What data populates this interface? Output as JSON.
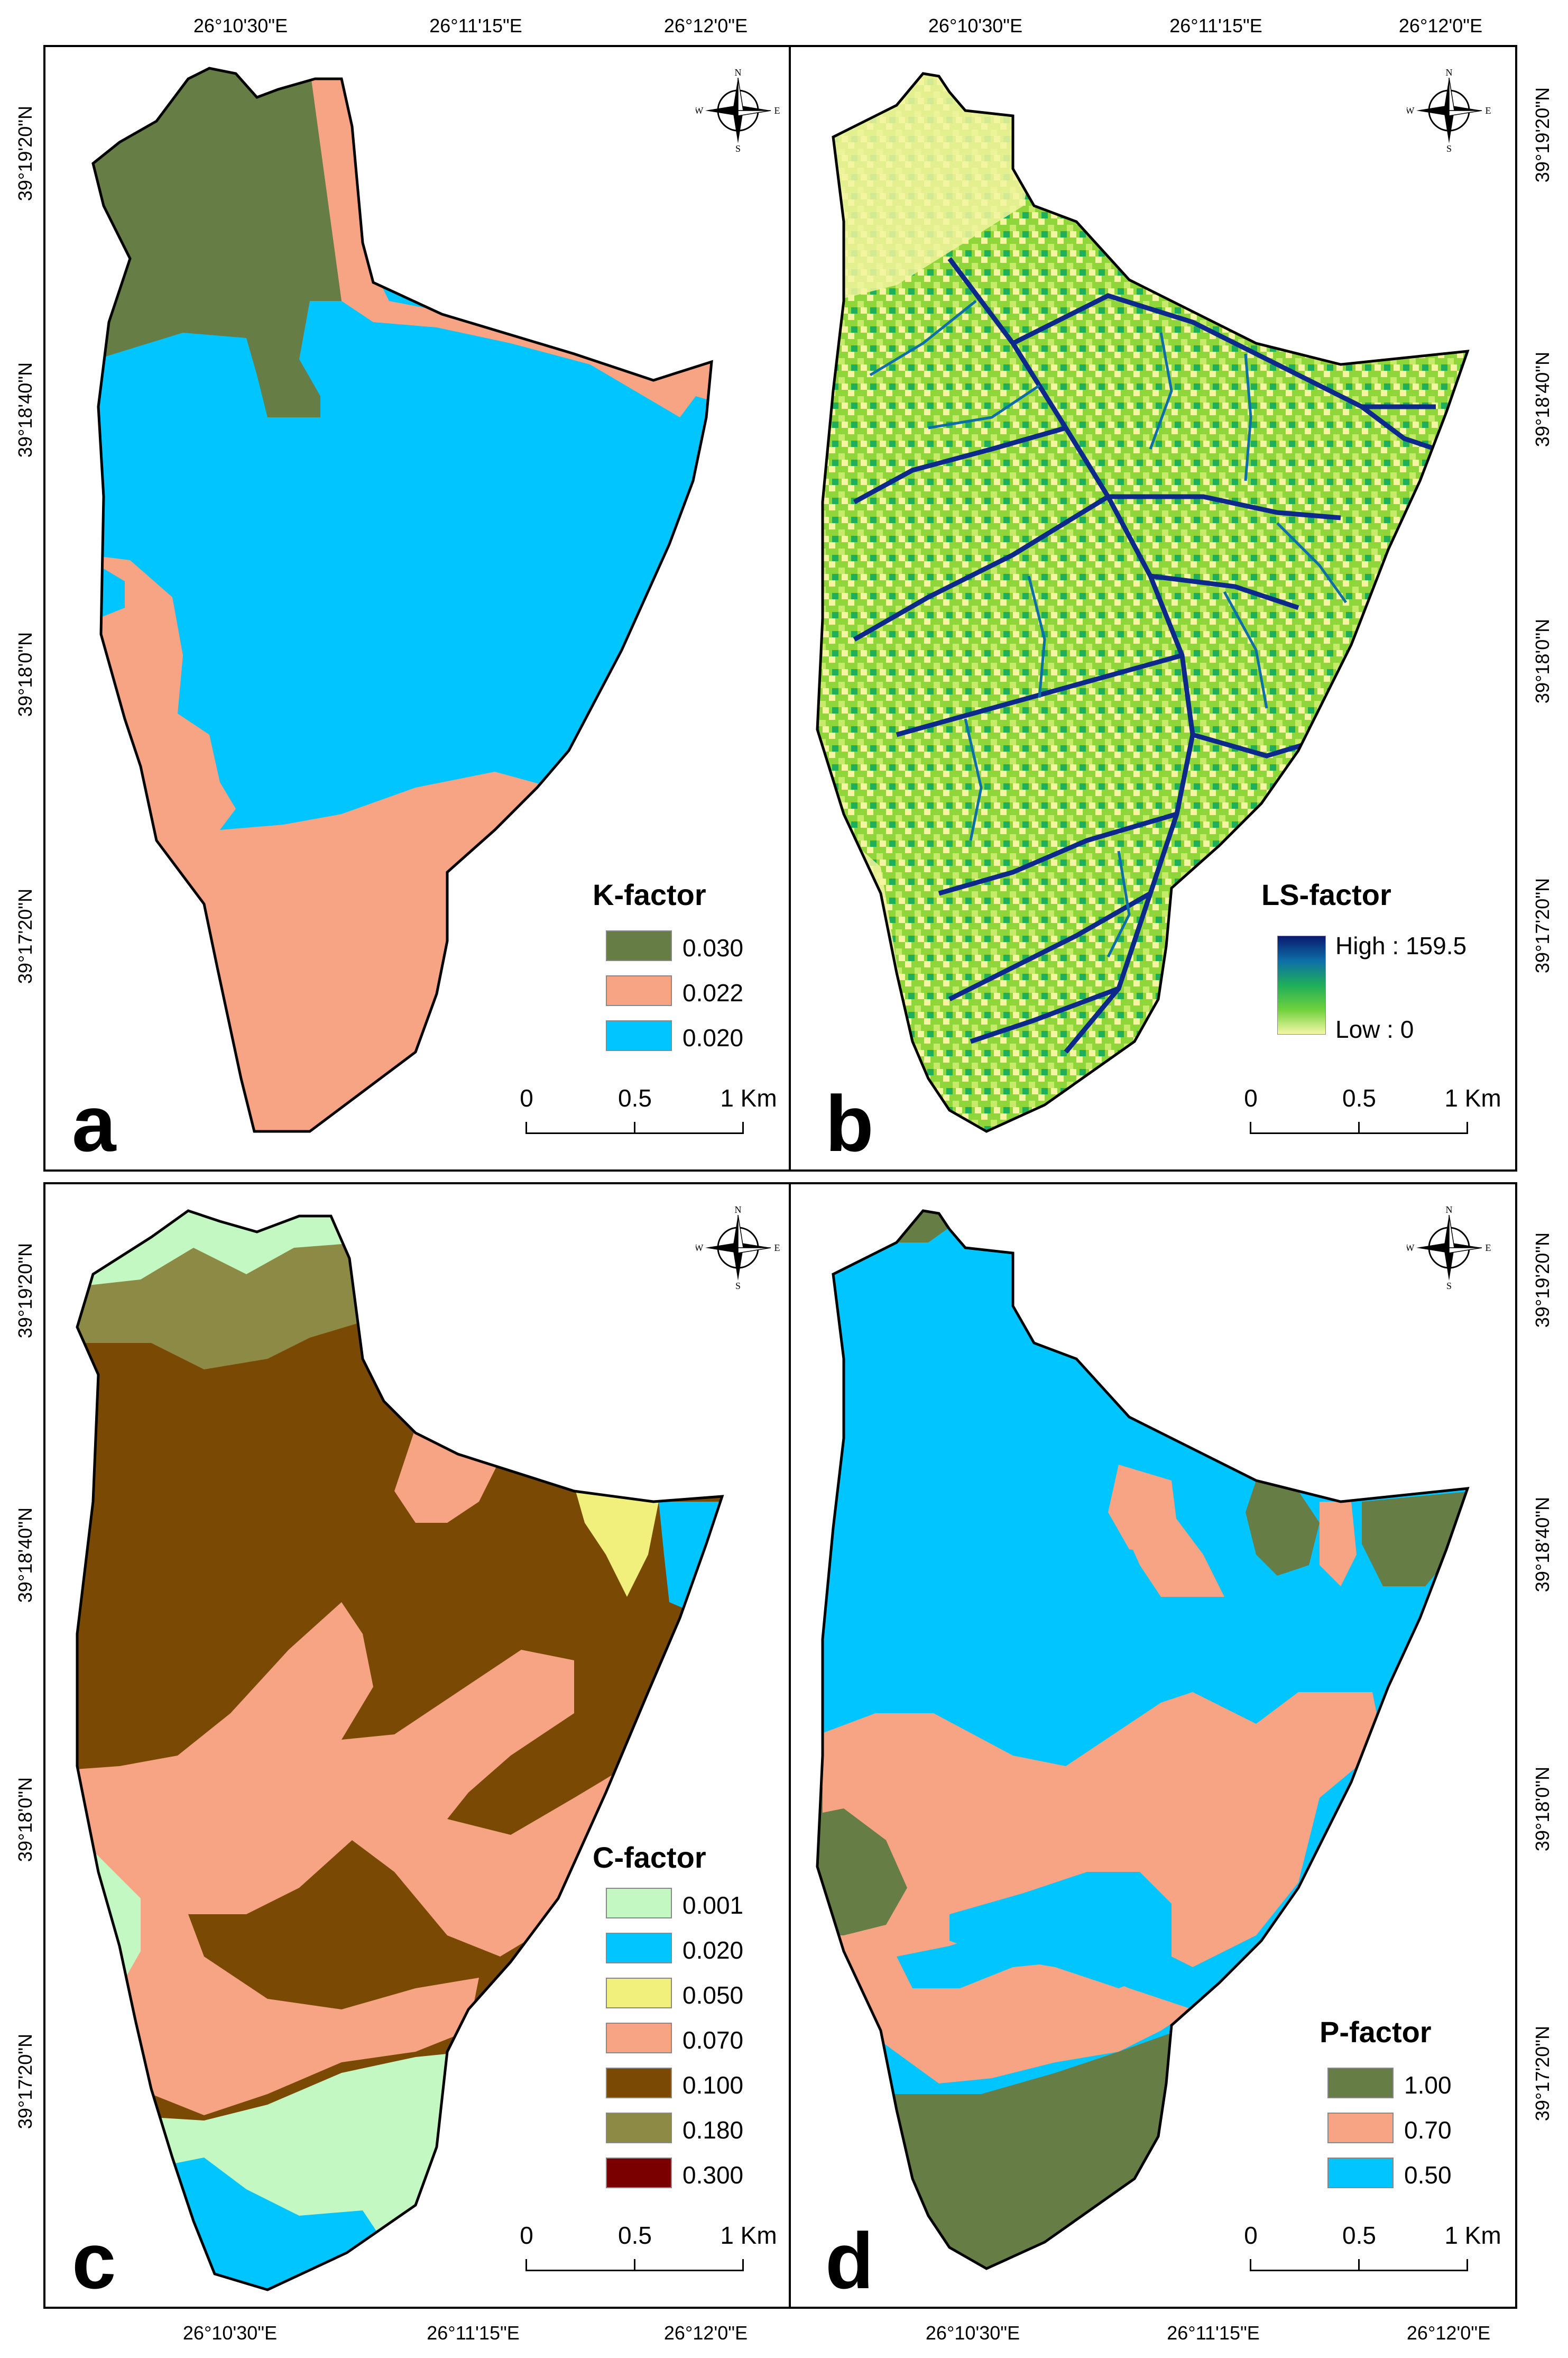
{
  "coords": {
    "top_lon": [
      "26°10'30\"E",
      "26°11'15\"E",
      "26°12'0\"E"
    ],
    "bottom_lon": [
      "26°10'30\"E",
      "26°11'15\"E",
      "26°12'0\"E"
    ],
    "left_lat_top": [
      "39°19'20\"N",
      "39°18'40\"N",
      "39°18'0\"N",
      "39°17'20\"N"
    ],
    "left_lat_bottom": [
      "39°19'20\"N",
      "39°18'40\"N",
      "39°18'0\"N",
      "39°17'20\"N"
    ],
    "right_lat_top": [
      "39°19'20\"N",
      "39°18'40\"N",
      "39°18'0\"N",
      "39°17'20\"N"
    ],
    "right_lat_bottom": [
      "39°19'20\"N",
      "39°18'40\"N",
      "39°18'0\"N",
      "39°17'20\"N"
    ]
  },
  "compass": {
    "n": "N",
    "s": "S",
    "e": "E",
    "w": "W"
  },
  "scale": {
    "labels": [
      "0",
      "0.5",
      "1 Km"
    ]
  },
  "panels": {
    "a": {
      "letter": "a",
      "legend_title": "K-factor",
      "items": [
        {
          "label": "0.030",
          "color": "#667d45"
        },
        {
          "label": "0.022",
          "color": "#f6a483"
        },
        {
          "label": "0.020",
          "color": "#00c5ff"
        }
      ]
    },
    "b": {
      "letter": "b",
      "legend_title": "LS-factor",
      "high": "High : 159.5",
      "low": "Low : 0",
      "colors": {
        "base": "#8fd63a",
        "light": "#f3f5a0",
        "stream": "#0d2a8a"
      }
    },
    "c": {
      "letter": "c",
      "legend_title": "C-factor",
      "items": [
        {
          "label": "0.001",
          "color": "#c3f8c3"
        },
        {
          "label": "0.020",
          "color": "#00c5ff"
        },
        {
          "label": "0.050",
          "color": "#f2f07c"
        },
        {
          "label": "0.070",
          "color": "#f6a483"
        },
        {
          "label": "0.100",
          "color": "#7a4a05"
        },
        {
          "label": "0.180",
          "color": "#8c8a44"
        },
        {
          "label": "0.300",
          "color": "#7a0000"
        }
      ]
    },
    "d": {
      "letter": "d",
      "legend_title": "P-factor",
      "items": [
        {
          "label": "1.00",
          "color": "#667d45"
        },
        {
          "label": "0.70",
          "color": "#f6a483"
        },
        {
          "label": "0.50",
          "color": "#00c5ff"
        }
      ]
    }
  }
}
